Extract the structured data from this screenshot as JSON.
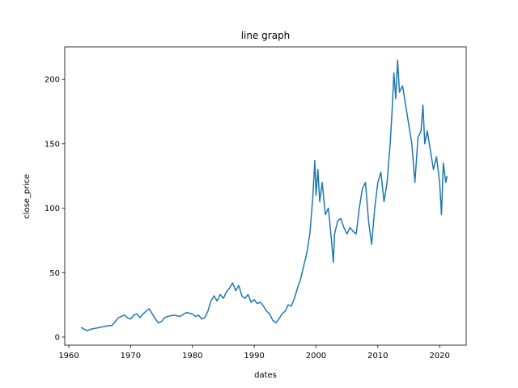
{
  "chart_data": {
    "type": "line",
    "title": "line graph",
    "x_label": "dates",
    "y_label": "close_price",
    "x": [
      1962.0,
      1962.5,
      1963,
      1963.5,
      1964,
      1965,
      1966,
      1967,
      1967.5,
      1968,
      1969,
      1969.5,
      1970,
      1970.5,
      1971,
      1971.5,
      1972,
      1972.5,
      1973,
      1973.5,
      1974,
      1974.5,
      1975,
      1975.5,
      1976,
      1977,
      1978,
      1979,
      1980,
      1980.5,
      1981,
      1981.5,
      1982,
      1982.5,
      1983,
      1983.5,
      1984,
      1984.5,
      1985,
      1985.5,
      1986,
      1986.5,
      1987,
      1987.5,
      1988,
      1988.5,
      1989,
      1989.5,
      1990,
      1990.5,
      1991,
      1991.5,
      1992,
      1992.5,
      1993,
      1993.5,
      1994,
      1994.5,
      1995,
      1995.5,
      1996,
      1996.5,
      1997,
      1997.5,
      1998,
      1998.5,
      1999,
      1999.5,
      1999.8,
      2000,
      2000.3,
      2000.6,
      2001,
      2001.5,
      2002,
      2002.5,
      2002.8,
      2003,
      2003.5,
      2004,
      2004.5,
      2005,
      2005.5,
      2006,
      2006.5,
      2007,
      2007.5,
      2008,
      2008.5,
      2009,
      2009.5,
      2010,
      2010.5,
      2011,
      2011.5,
      2012,
      2012.3,
      2012.6,
      2012.9,
      2013.2,
      2013.5,
      2014,
      2014.5,
      2015,
      2015.5,
      2016,
      2016.5,
      2017,
      2017.3,
      2017.6,
      2018,
      2018.5,
      2019,
      2019.5,
      2020,
      2020.3,
      2020.6,
      2021,
      2021.2
    ],
    "series": [
      {
        "name": "close_price",
        "color": "#1f77b4",
        "values": [
          7.5,
          6,
          5,
          6,
          6.5,
          7.5,
          8.5,
          9,
          12,
          15,
          17,
          15,
          14,
          17,
          18,
          15,
          18,
          20,
          22,
          18,
          14,
          11,
          12,
          15,
          16,
          17,
          16,
          19,
          18,
          16,
          17,
          14,
          15,
          20,
          28,
          32,
          28,
          33,
          30,
          35,
          38,
          42,
          36,
          40,
          32,
          30,
          33,
          27,
          29,
          26,
          27,
          24,
          20,
          18,
          13,
          11,
          14,
          18,
          20,
          25,
          24,
          30,
          38,
          45,
          55,
          65,
          80,
          110,
          137,
          110,
          130,
          105,
          120,
          95,
          100,
          75,
          58,
          80,
          90,
          92,
          85,
          80,
          85,
          82,
          80,
          100,
          115,
          120,
          90,
          72,
          100,
          120,
          128,
          105,
          120,
          150,
          175,
          205,
          185,
          215,
          190,
          195,
          180,
          165,
          150,
          120,
          155,
          160,
          180,
          150,
          160,
          145,
          130,
          140,
          120,
          95,
          135,
          120,
          125
        ]
      }
    ],
    "xlim": [
      1959.34,
      2024.3
    ],
    "ylim": [
      -6.3,
      225.2
    ],
    "xticks": [
      1960,
      1970,
      1980,
      1990,
      2000,
      2010,
      2020
    ],
    "yticks": [
      0,
      50,
      100,
      150,
      200
    ]
  }
}
